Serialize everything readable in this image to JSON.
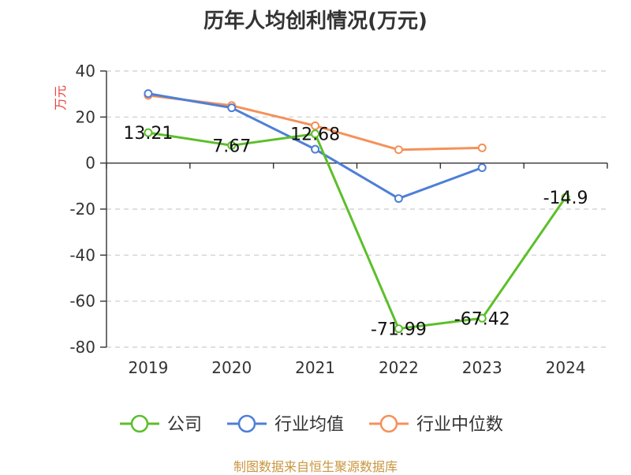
{
  "chart_data": {
    "type": "line",
    "title": "历年人均创利情况(万元)",
    "ylabel": "万元",
    "categories": [
      "2019",
      "2020",
      "2021",
      "2022",
      "2023",
      "2024"
    ],
    "ylim": [
      -80,
      40
    ],
    "yticks": [
      40,
      20,
      0,
      -20,
      -40,
      -60,
      -80
    ],
    "grid": true,
    "legend_position": "bottom",
    "series": [
      {
        "name": "公司",
        "color": "#5cbf2a",
        "values": [
          13.21,
          7.67,
          12.68,
          -71.99,
          -67.42,
          -14.9
        ],
        "labels": [
          "13.21",
          "7.67",
          "12.68",
          "-71.99",
          "-67.42",
          "-14.9"
        ]
      },
      {
        "name": "行业均值",
        "color": "#4e7fd6",
        "values": [
          30.2,
          24.0,
          6.0,
          -15.4,
          -2.0,
          null
        ]
      },
      {
        "name": "行业中位数",
        "color": "#f4915a",
        "values": [
          29.4,
          25.0,
          16.2,
          5.8,
          6.6,
          null
        ]
      }
    ],
    "colors": {
      "axis": "#333333",
      "grid": "#cccccc",
      "ylabel": "#e8413c",
      "source": "#c8963e"
    }
  },
  "source": "制图数据来自恒生聚源数据库"
}
